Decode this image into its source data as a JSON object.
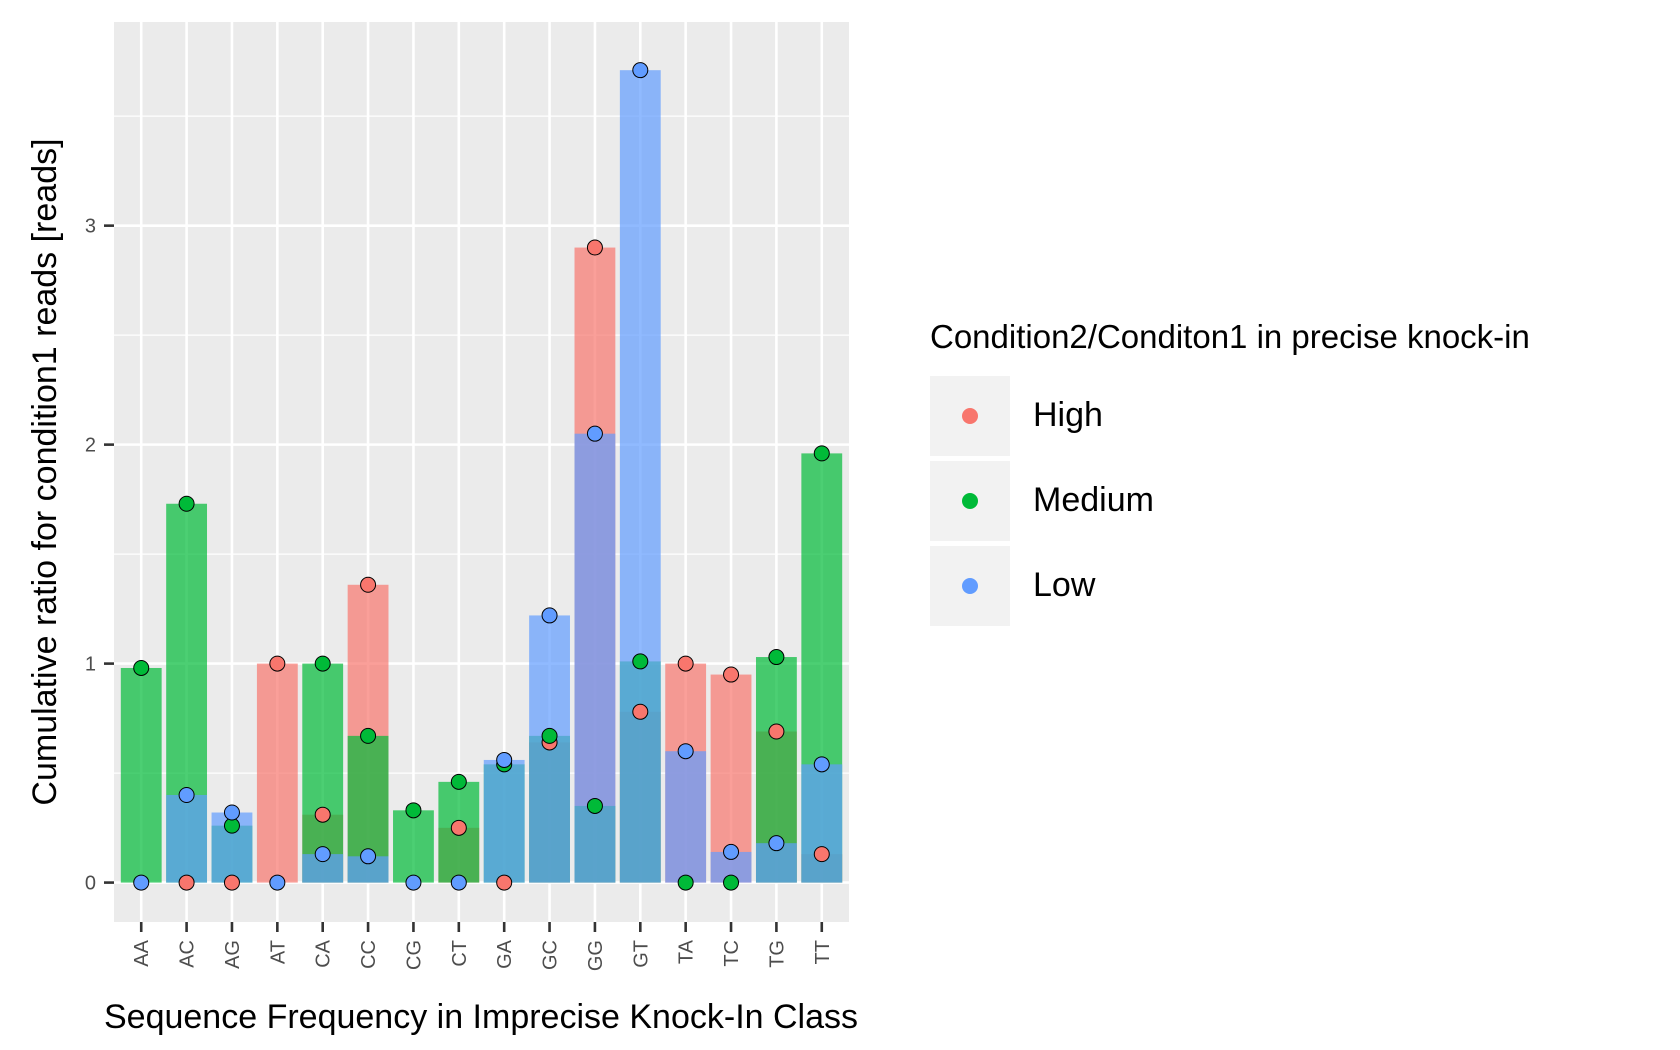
{
  "chart_data": {
    "type": "bar",
    "xlabel": "Sequence Frequency in Imprecise Knock-In Class",
    "ylabel": "Cumulative ratio for condition1 reads [reads]",
    "ylim": [
      -0.18,
      3.93
    ],
    "y_ticks": [
      "0",
      "1",
      "2",
      "3"
    ],
    "grid": true,
    "legend_placement": "right",
    "legend_title": "Condition2/Conditon1 in precise knock-in",
    "categories": [
      "AA",
      "AC",
      "AG",
      "AT",
      "CA",
      "CC",
      "CG",
      "CT",
      "GA",
      "GC",
      "GG",
      "GT",
      "TA",
      "TC",
      "TG",
      "TT"
    ],
    "series": [
      {
        "name": "High",
        "color": "#F8766D",
        "values": [
          null,
          0.0,
          0.0,
          1.0,
          0.31,
          1.36,
          null,
          0.25,
          0.0,
          0.64,
          2.9,
          0.78,
          1.0,
          0.95,
          0.69,
          0.13
        ]
      },
      {
        "name": "Medium",
        "color": "#00BA38",
        "values": [
          0.98,
          1.73,
          0.26,
          null,
          1.0,
          0.67,
          0.33,
          0.46,
          0.54,
          0.67,
          0.35,
          1.01,
          0.0,
          0.0,
          1.03,
          1.96
        ]
      },
      {
        "name": "Low",
        "color": "#619CFF",
        "values": [
          0.0,
          0.4,
          0.32,
          0.0,
          0.13,
          0.12,
          0.0,
          0.0,
          0.56,
          1.22,
          2.05,
          3.71,
          0.6,
          0.14,
          0.18,
          0.54
        ]
      }
    ]
  }
}
